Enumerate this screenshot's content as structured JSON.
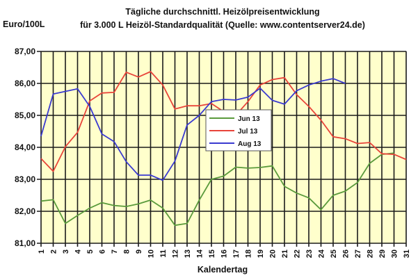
{
  "chart_data": {
    "type": "line",
    "title": "Tägliche durchschnittl. Heizölpreisentwicklung",
    "subtitle": "für 3.000 L Heizöl-Standardqualität (Quelle: www.contentserver24.de)",
    "xlabel": "Kalendertag",
    "ylabel": "Euro/100L",
    "ylim": [
      81,
      87
    ],
    "yticks": [
      "81,00",
      "82,00",
      "83,00",
      "84,00",
      "85,00",
      "86,00",
      "87,00"
    ],
    "x": [
      1,
      2,
      3,
      4,
      5,
      6,
      7,
      8,
      9,
      10,
      11,
      12,
      13,
      14,
      15,
      16,
      17,
      18,
      19,
      20,
      21,
      22,
      23,
      24,
      25,
      26,
      27,
      28,
      29,
      30,
      31
    ],
    "grid": true,
    "legend_position": "inside-center",
    "plot_background": "#ffffcc",
    "series": [
      {
        "name": "Jun 13",
        "color": "#5a9a3c",
        "values": [
          82.32,
          82.36,
          81.62,
          81.87,
          82.1,
          82.27,
          82.18,
          82.15,
          82.23,
          82.35,
          82.1,
          81.56,
          81.62,
          82.35,
          83.0,
          83.1,
          83.38,
          83.35,
          83.37,
          83.42,
          82.78,
          82.57,
          82.42,
          82.05,
          82.5,
          82.63,
          82.9,
          83.5,
          83.78,
          83.82
        ]
      },
      {
        "name": "Jul 13",
        "color": "#e8443a",
        "values": [
          83.65,
          83.25,
          84.02,
          84.47,
          85.45,
          85.7,
          85.72,
          86.35,
          86.2,
          86.37,
          85.95,
          85.2,
          85.3,
          85.3,
          85.37,
          85.12,
          85.0,
          85.43,
          85.95,
          86.12,
          86.18,
          85.65,
          85.28,
          84.85,
          84.33,
          84.27,
          84.12,
          84.15,
          83.8,
          83.78,
          83.62
        ]
      },
      {
        "name": "Aug 13",
        "color": "#3a3ad0",
        "values": [
          84.35,
          85.67,
          85.75,
          85.83,
          85.28,
          84.42,
          84.18,
          83.55,
          83.13,
          83.13,
          82.97,
          83.57,
          84.7,
          85.0,
          85.43,
          85.5,
          85.48,
          85.57,
          85.85,
          85.47,
          85.35,
          85.77,
          85.95,
          86.07,
          86.15,
          86.0
        ]
      }
    ]
  }
}
